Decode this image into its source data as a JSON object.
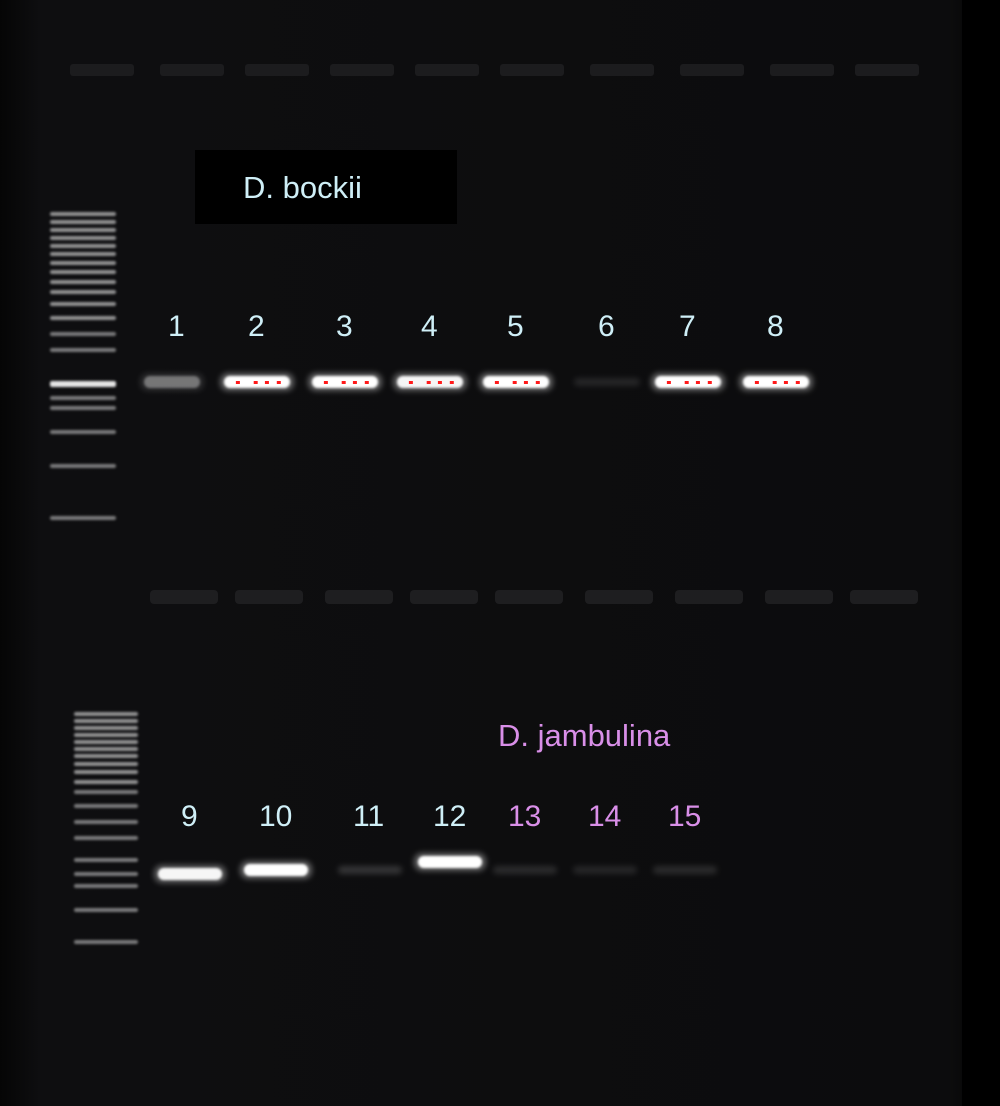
{
  "colors": {
    "bockii_label": "#cfeff7",
    "jambulina_label": "#d98fe8",
    "band": "#ffffff",
    "saturated": "#ff1a1a",
    "gel_background": "#0b0b0c"
  },
  "top_row": {
    "species": "D. bockii",
    "lanes": [
      {
        "number": "1",
        "band_intensity": 0.35
      },
      {
        "number": "2",
        "band_intensity": 1.0
      },
      {
        "number": "3",
        "band_intensity": 1.0
      },
      {
        "number": "4",
        "band_intensity": 0.95
      },
      {
        "number": "5",
        "band_intensity": 1.0
      },
      {
        "number": "6",
        "band_intensity": 0.05
      },
      {
        "number": "7",
        "band_intensity": 1.0
      },
      {
        "number": "8",
        "band_intensity": 1.0
      }
    ]
  },
  "bottom_row": {
    "species": "D. jambulina",
    "lanes": [
      {
        "number": "9",
        "band_intensity": 0.95,
        "group": "bockii"
      },
      {
        "number": "10",
        "band_intensity": 1.0,
        "group": "bockii"
      },
      {
        "number": "11",
        "band_intensity": 0.08,
        "group": "bockii"
      },
      {
        "number": "12",
        "band_intensity": 1.0,
        "group": "bockii"
      },
      {
        "number": "13",
        "band_intensity": 0.06,
        "group": "jambulina"
      },
      {
        "number": "14",
        "band_intensity": 0.05,
        "group": "jambulina"
      },
      {
        "number": "15",
        "band_intensity": 0.06,
        "group": "jambulina"
      }
    ]
  }
}
